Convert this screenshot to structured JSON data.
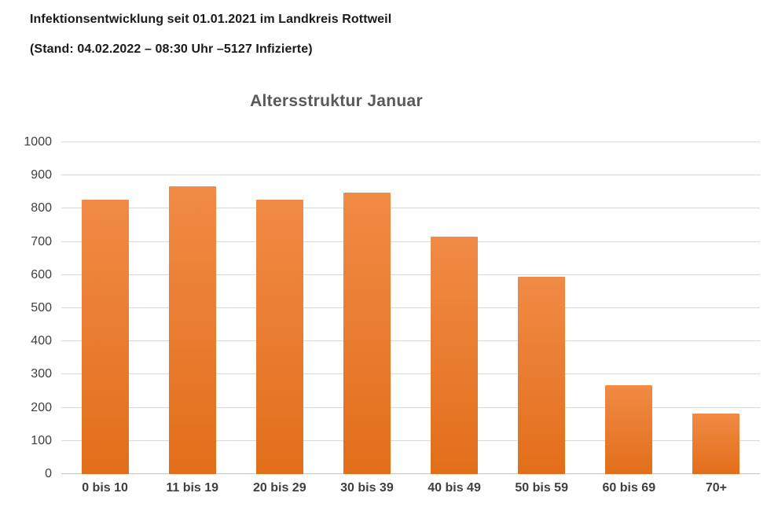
{
  "header": {
    "line1": "Infektionsentwicklung seit 01.01.2021 im Landkreis Rottweil",
    "line2": "(Stand: 04.02.2022 – 08:30 Uhr –5127 Infizierte)"
  },
  "chart_data": {
    "type": "bar",
    "title": "Altersstruktur Januar",
    "categories": [
      "0 bis 10",
      "11 bis 19",
      "20 bis 29",
      "30 bis 39",
      "40 bis 49",
      "50 bis 59",
      "60 bis 69",
      "70+"
    ],
    "values": [
      828,
      868,
      828,
      848,
      715,
      595,
      268,
      183
    ],
    "xlabel": "",
    "ylabel": "",
    "ylim": [
      0,
      1000
    ],
    "yticks": [
      0,
      100,
      200,
      300,
      400,
      500,
      600,
      700,
      800,
      900,
      1000
    ],
    "grid": true,
    "legend": "none",
    "colors": {
      "bar_gradient_top": "#f08b45",
      "bar_gradient_bottom": "#e26e1a",
      "gridline": "#d9d9d9",
      "baseline": "#c6c6c6",
      "axis_label": "#3f3f3f",
      "title": "#595959",
      "header_text": "#1a1a1a",
      "background": "#ffffff"
    }
  }
}
